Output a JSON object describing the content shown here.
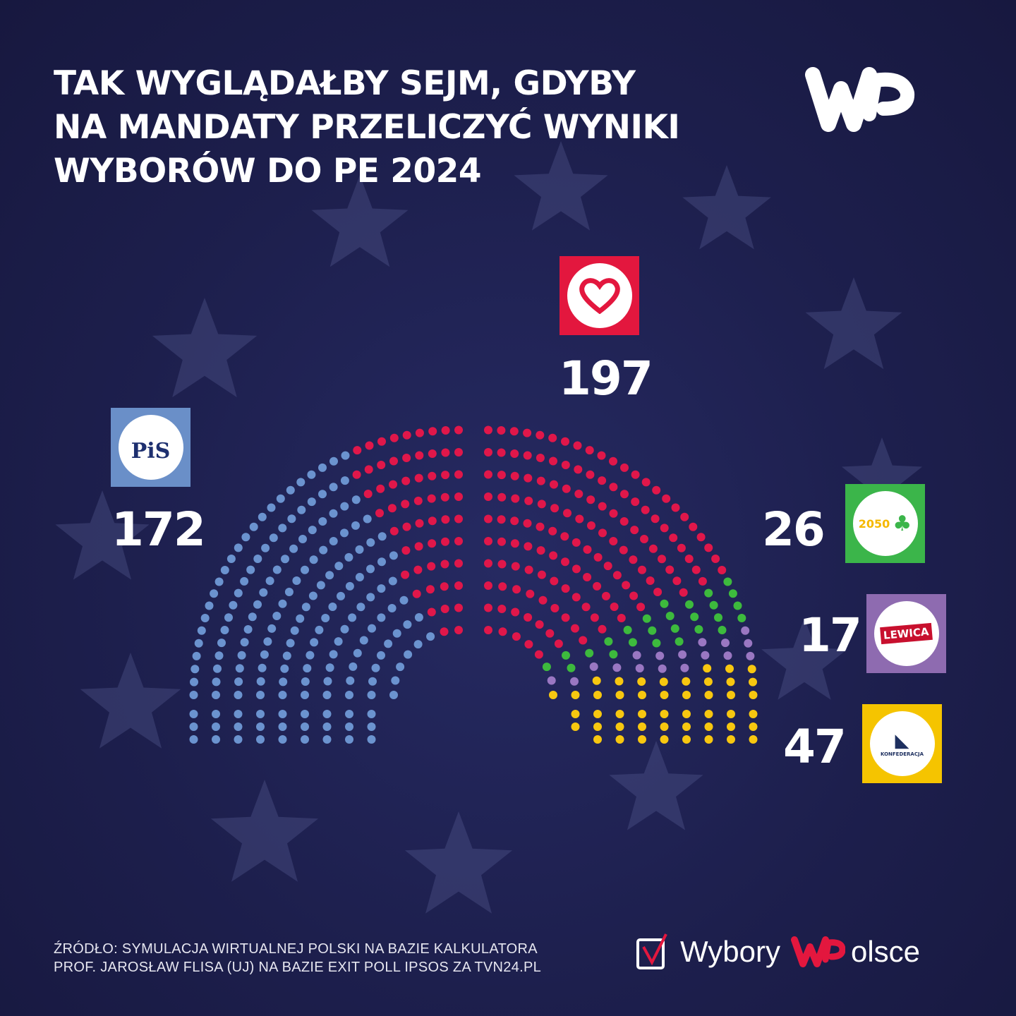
{
  "title_lines": [
    "TAK WYGLĄDAŁBY SEJM, GDYBY",
    "NA MANDATY PRZELICZYĆ WYNIKI",
    "WYBORÓW DO PE 2024"
  ],
  "brand": {
    "logo": "WP",
    "footer_wybory": "Wybory",
    "footer_olsce": "olsce",
    "footer_logo": "WP"
  },
  "source": [
    "ŹRÓDŁO: SYMULACJA WIRTUALNEJ POLSKI NA BAZIE KALKULATORA",
    "PROF. JAROSŁAW FLISA (UJ) NA BAZIE EXIT POLL IPSOS ZA TVN24.PL"
  ],
  "logos": {
    "pis": "PiS",
    "td": "2050",
    "lewica": "LEWICA",
    "konf": "KONFEDERACJA"
  },
  "chart_data": {
    "type": "parliament",
    "total_seats": 460,
    "categories": [
      "PiS",
      "KO",
      "Trzecia Droga",
      "Lewica",
      "Konfederacja"
    ],
    "values": [
      172,
      197,
      26,
      17,
      47
    ],
    "labels": [
      "172",
      "197",
      "26",
      "17",
      "47"
    ],
    "colors": [
      "#6b93cf",
      "#e0174a",
      "#3dba3d",
      "#9a77c2",
      "#f7c710"
    ]
  }
}
